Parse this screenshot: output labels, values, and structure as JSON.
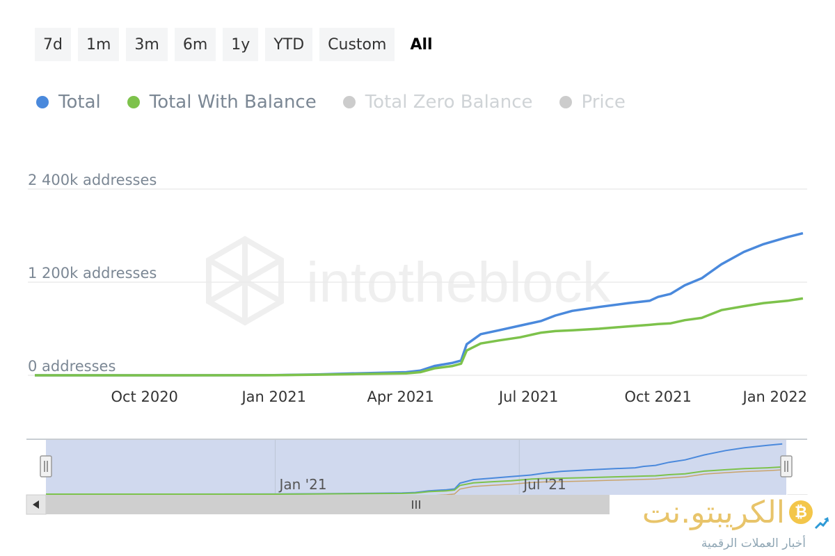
{
  "range_buttons": [
    "7d",
    "1m",
    "3m",
    "6m",
    "1y",
    "YTD",
    "Custom",
    "All"
  ],
  "active_range": "All",
  "legend": [
    {
      "label": "Total",
      "color": "#4a89dc",
      "visible": true
    },
    {
      "label": "Total With Balance",
      "color": "#7dc24b",
      "visible": true
    },
    {
      "label": "Total Zero Balance",
      "color": "#cccccc",
      "visible": false
    },
    {
      "label": "Price",
      "color": "#cccccc",
      "visible": false
    }
  ],
  "watermark": "intotheblock",
  "brand": {
    "name": "الكريبتو.نت",
    "tagline": "أخبار العملات الرقمية",
    "coin_symbol": "₿"
  },
  "chart_data": {
    "type": "line",
    "x_tick_labels": [
      "Oct 2020",
      "Jan 2021",
      "Apr 2021",
      "Jul 2021",
      "Oct 2021",
      "Jan 2022"
    ],
    "y_tick_labels": [
      "0 addresses",
      "1 200k addresses",
      "2 400k addresses"
    ],
    "ylim": [
      0,
      2400000
    ],
    "xlim": [
      "2020-07-15",
      "2022-01-15"
    ],
    "grid": true,
    "series": [
      {
        "name": "Total",
        "color": "#4a89dc",
        "points": [
          [
            "2020-07-15",
            0
          ],
          [
            "2020-10-01",
            0
          ],
          [
            "2021-01-01",
            2000
          ],
          [
            "2021-02-01",
            12000
          ],
          [
            "2021-03-01",
            25000
          ],
          [
            "2021-04-05",
            40000
          ],
          [
            "2021-04-15",
            60000
          ],
          [
            "2021-04-25",
            120000
          ],
          [
            "2021-05-08",
            160000
          ],
          [
            "2021-05-14",
            190000
          ],
          [
            "2021-05-18",
            400000
          ],
          [
            "2021-05-28",
            530000
          ],
          [
            "2021-06-10",
            580000
          ],
          [
            "2021-06-25",
            640000
          ],
          [
            "2021-07-10",
            700000
          ],
          [
            "2021-07-20",
            770000
          ],
          [
            "2021-08-01",
            830000
          ],
          [
            "2021-08-20",
            880000
          ],
          [
            "2021-09-10",
            930000
          ],
          [
            "2021-09-25",
            960000
          ],
          [
            "2021-10-01",
            1010000
          ],
          [
            "2021-10-10",
            1050000
          ],
          [
            "2021-10-20",
            1160000
          ],
          [
            "2021-11-01",
            1250000
          ],
          [
            "2021-11-15",
            1430000
          ],
          [
            "2021-12-01",
            1590000
          ],
          [
            "2021-12-15",
            1690000
          ],
          [
            "2022-01-01",
            1780000
          ],
          [
            "2022-01-12",
            1830000
          ]
        ]
      },
      {
        "name": "Total With Balance",
        "color": "#7dc24b",
        "points": [
          [
            "2020-07-15",
            0
          ],
          [
            "2020-10-01",
            0
          ],
          [
            "2021-01-01",
            1000
          ],
          [
            "2021-02-01",
            8000
          ],
          [
            "2021-03-01",
            15000
          ],
          [
            "2021-04-05",
            25000
          ],
          [
            "2021-04-15",
            40000
          ],
          [
            "2021-04-25",
            90000
          ],
          [
            "2021-05-08",
            120000
          ],
          [
            "2021-05-14",
            150000
          ],
          [
            "2021-05-18",
            320000
          ],
          [
            "2021-05-28",
            410000
          ],
          [
            "2021-06-10",
            450000
          ],
          [
            "2021-06-25",
            490000
          ],
          [
            "2021-07-10",
            550000
          ],
          [
            "2021-07-20",
            570000
          ],
          [
            "2021-08-01",
            580000
          ],
          [
            "2021-08-20",
            600000
          ],
          [
            "2021-09-10",
            630000
          ],
          [
            "2021-09-25",
            650000
          ],
          [
            "2021-10-01",
            660000
          ],
          [
            "2021-10-10",
            670000
          ],
          [
            "2021-10-20",
            710000
          ],
          [
            "2021-11-01",
            740000
          ],
          [
            "2021-11-15",
            840000
          ],
          [
            "2021-12-01",
            890000
          ],
          [
            "2021-12-15",
            930000
          ],
          [
            "2022-01-01",
            960000
          ],
          [
            "2022-01-12",
            990000
          ]
        ]
      }
    ]
  },
  "navigator": {
    "x_tick_labels": [
      "Jan '21",
      "Jul '21"
    ],
    "series_colors": [
      "#4a89dc",
      "#7dc24b",
      "#c9a36b"
    ]
  }
}
